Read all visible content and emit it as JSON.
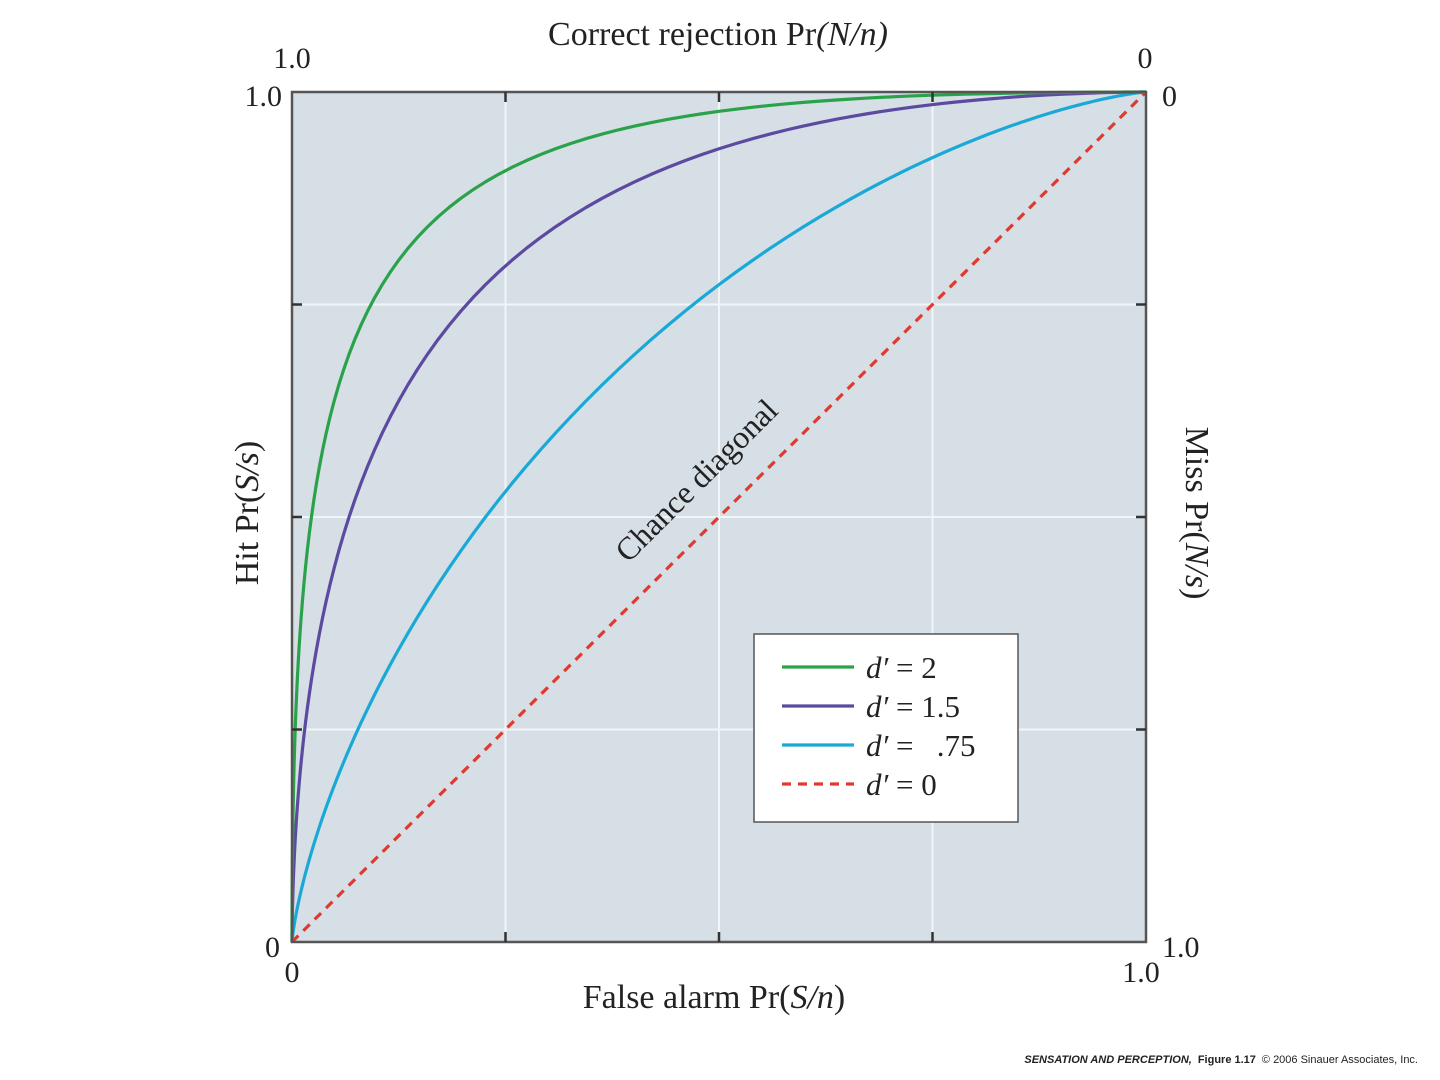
{
  "chart_data": {
    "type": "line",
    "x_axis": {
      "label_prefix": "False alarm Pr(",
      "label_var": "S/n",
      "label_suffix": ")",
      "range": [
        0,
        1
      ],
      "tick_labels": [
        "0",
        "1.0"
      ]
    },
    "y_axis": {
      "label_prefix": "Hit Pr(",
      "label_var": "S/s",
      "label_suffix": ")",
      "range": [
        0,
        1
      ],
      "tick_labels": [
        "0",
        "1.0"
      ]
    },
    "top_axis": {
      "label_prefix": "Correct rejection Pr",
      "label_var": "(N/n)",
      "label_suffix": "",
      "tick_left": "1.0",
      "tick_right": "0"
    },
    "right_axis": {
      "label_prefix": "Miss Pr(",
      "label_var": "N/s",
      "label_suffix": ")",
      "tick_top": "0",
      "tick_bottom": "1.0"
    },
    "gridlines": true,
    "grid_step": 0.25,
    "annotation": "Chance diagonal",
    "legend_position": "lower-right",
    "series": [
      {
        "name": "d′ = 2",
        "d_prime": 2,
        "color": "#2aa24a",
        "dashed": false
      },
      {
        "name": "d′ = 1.5",
        "d_prime": 1.5,
        "color": "#5b4aa0",
        "dashed": false
      },
      {
        "name": "d′ =   .75",
        "d_prime": 0.75,
        "color": "#1aa9d6",
        "dashed": false
      },
      {
        "name": "d′ = 0",
        "d_prime": 0,
        "color": "#e03a2e",
        "dashed": true
      }
    ]
  },
  "footer": {
    "title": "SENSATION AND PERCEPTION,",
    "figure": "Figure 1.17",
    "copyright": "© 2006 Sinauer Associates, Inc."
  },
  "colors": {
    "plot_background": "#d6dee6",
    "frame": "#555555",
    "grid": "#f2f5f8"
  }
}
